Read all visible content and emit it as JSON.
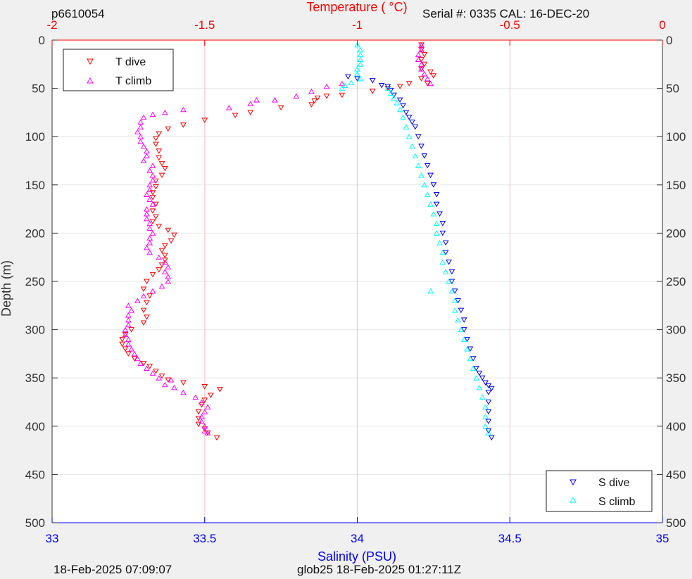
{
  "header": {
    "glider_id": "p6610054",
    "serial": "Serial #: 0335  CAL: 16-DEC-20"
  },
  "footer": {
    "timestamp": "18-Feb-2025 07:09:07",
    "dive_info": "glob25 18-Feb-2025 01:27:11Z"
  },
  "colors": {
    "temperature_axis": "#ff0000",
    "salinity_axis": "#0000ff",
    "t_dive": "#ff0000",
    "t_climb": "#ff00ff",
    "s_dive": "#0000ff",
    "s_climb": "#00ffff",
    "grid": "#f3c3c3"
  },
  "chart_data": {
    "type": "scatter",
    "title": "",
    "y_axis": {
      "label": "Depth (m)",
      "range": [
        0,
        500
      ],
      "ticks": [
        0,
        50,
        100,
        150,
        200,
        250,
        300,
        350,
        400,
        450,
        500
      ],
      "tick_labels": [
        "0",
        "50",
        "100",
        "150",
        "200",
        "250",
        "300",
        "350",
        "400",
        "450",
        "500"
      ],
      "reversed": true
    },
    "x_top": {
      "label": "Temperature (    °C)",
      "range": [
        -2,
        0
      ],
      "ticks": [
        -2,
        -1.5,
        -1,
        -0.5,
        0
      ],
      "tick_labels": [
        "-2",
        "-1.5",
        "-1",
        "-0.5",
        "0"
      ]
    },
    "x_bottom": {
      "label": "Salinity (PSU)",
      "range": [
        33,
        35
      ],
      "ticks": [
        33,
        33.5,
        34,
        34.5,
        35
      ],
      "tick_labels": [
        "33",
        "33.5",
        "34",
        "34.5",
        "35"
      ]
    },
    "grid": true,
    "legends": [
      {
        "placement": "top-left",
        "entries": [
          "T dive",
          "T climb"
        ]
      },
      {
        "placement": "bottom-right",
        "entries": [
          "S dive",
          "S climb"
        ]
      }
    ],
    "series": [
      {
        "name": "T dive",
        "axis": "temperature",
        "marker": "triangle-down",
        "points": [
          [
            -0.79,
            5
          ],
          [
            -0.79,
            10
          ],
          [
            -0.78,
            15
          ],
          [
            -0.79,
            20
          ],
          [
            -0.78,
            25
          ],
          [
            -0.79,
            30
          ],
          [
            -0.76,
            33
          ],
          [
            -0.75,
            37
          ],
          [
            -0.79,
            40
          ],
          [
            -0.77,
            45
          ],
          [
            -0.83,
            45
          ],
          [
            -0.86,
            48
          ],
          [
            -0.9,
            50
          ],
          [
            -0.95,
            53
          ],
          [
            -1.05,
            57
          ],
          [
            -1.1,
            58
          ],
          [
            -1.13,
            60
          ],
          [
            -1.14,
            63
          ],
          [
            -1.15,
            67
          ],
          [
            -1.25,
            70
          ],
          [
            -1.35,
            75
          ],
          [
            -1.4,
            78
          ],
          [
            -1.5,
            83
          ],
          [
            -1.57,
            88
          ],
          [
            -1.62,
            92
          ],
          [
            -1.65,
            97
          ],
          [
            -1.66,
            102
          ],
          [
            -1.66,
            108
          ],
          [
            -1.65,
            115
          ],
          [
            -1.65,
            122
          ],
          [
            -1.64,
            128
          ],
          [
            -1.63,
            133
          ],
          [
            -1.64,
            140
          ],
          [
            -1.66,
            146
          ],
          [
            -1.66,
            152
          ],
          [
            -1.67,
            158
          ],
          [
            -1.67,
            163
          ],
          [
            -1.66,
            170
          ],
          [
            -1.67,
            177
          ],
          [
            -1.66,
            183
          ],
          [
            -1.67,
            188
          ],
          [
            -1.65,
            193
          ],
          [
            -1.62,
            197
          ],
          [
            -1.6,
            202
          ],
          [
            -1.61,
            208
          ],
          [
            -1.63,
            213
          ],
          [
            -1.64,
            218
          ],
          [
            -1.63,
            223
          ],
          [
            -1.63,
            228
          ],
          [
            -1.64,
            233
          ],
          [
            -1.65,
            238
          ],
          [
            -1.67,
            243
          ],
          [
            -1.69,
            250
          ],
          [
            -1.7,
            258
          ],
          [
            -1.68,
            265
          ],
          [
            -1.69,
            272
          ],
          [
            -1.7,
            280
          ],
          [
            -1.69,
            287
          ],
          [
            -1.7,
            293
          ],
          [
            -1.74,
            300
          ],
          [
            -1.76,
            305
          ],
          [
            -1.77,
            310
          ],
          [
            -1.77,
            315
          ],
          [
            -1.76,
            320
          ],
          [
            -1.75,
            325
          ],
          [
            -1.73,
            330
          ],
          [
            -1.7,
            335
          ],
          [
            -1.68,
            338
          ],
          [
            -1.66,
            343
          ],
          [
            -1.64,
            348
          ],
          [
            -1.62,
            352
          ],
          [
            -1.57,
            355
          ],
          [
            -1.5,
            359
          ],
          [
            -1.45,
            362
          ],
          [
            -1.48,
            368
          ],
          [
            -1.5,
            373
          ],
          [
            -1.51,
            378
          ],
          [
            -1.52,
            385
          ],
          [
            -1.52,
            392
          ],
          [
            -1.52,
            398
          ],
          [
            -1.5,
            403
          ],
          [
            -1.49,
            407
          ],
          [
            -1.46,
            412
          ]
        ]
      },
      {
        "name": "T climb",
        "axis": "temperature",
        "marker": "triangle-up",
        "points": [
          [
            -0.79,
            5
          ],
          [
            -0.79,
            10
          ],
          [
            -0.8,
            15
          ],
          [
            -0.8,
            20
          ],
          [
            -0.79,
            25
          ],
          [
            -0.79,
            30
          ],
          [
            -0.78,
            35
          ],
          [
            -0.77,
            40
          ],
          [
            -0.76,
            45
          ],
          [
            -1.05,
            45
          ],
          [
            -1.1,
            48
          ],
          [
            -1.15,
            53
          ],
          [
            -1.2,
            58
          ],
          [
            -1.27,
            62
          ],
          [
            -1.33,
            62
          ],
          [
            -1.35,
            66
          ],
          [
            -1.42,
            70
          ],
          [
            -1.57,
            72
          ],
          [
            -1.63,
            75
          ],
          [
            -1.67,
            77
          ],
          [
            -1.7,
            80
          ],
          [
            -1.71,
            85
          ],
          [
            -1.71,
            90
          ],
          [
            -1.72,
            95
          ],
          [
            -1.71,
            100
          ],
          [
            -1.71,
            105
          ],
          [
            -1.7,
            110
          ],
          [
            -1.69,
            115
          ],
          [
            -1.69,
            120
          ],
          [
            -1.7,
            125
          ],
          [
            -1.67,
            130
          ],
          [
            -1.68,
            135
          ],
          [
            -1.67,
            140
          ],
          [
            -1.67,
            145
          ],
          [
            -1.68,
            150
          ],
          [
            -1.68,
            155
          ],
          [
            -1.69,
            160
          ],
          [
            -1.68,
            165
          ],
          [
            -1.67,
            170
          ],
          [
            -1.69,
            175
          ],
          [
            -1.69,
            180
          ],
          [
            -1.69,
            185
          ],
          [
            -1.68,
            190
          ],
          [
            -1.68,
            195
          ],
          [
            -1.67,
            200
          ],
          [
            -1.68,
            205
          ],
          [
            -1.68,
            210
          ],
          [
            -1.69,
            215
          ],
          [
            -1.68,
            220
          ],
          [
            -1.65,
            225
          ],
          [
            -1.63,
            230
          ],
          [
            -1.62,
            235
          ],
          [
            -1.63,
            240
          ],
          [
            -1.62,
            245
          ],
          [
            -1.62,
            250
          ],
          [
            -1.64,
            255
          ],
          [
            -1.67,
            260
          ],
          [
            -1.7,
            265
          ],
          [
            -1.72,
            270
          ],
          [
            -1.75,
            275
          ],
          [
            -1.74,
            280
          ],
          [
            -1.75,
            285
          ],
          [
            -1.75,
            290
          ],
          [
            -1.75,
            295
          ],
          [
            -1.76,
            300
          ],
          [
            -1.76,
            305
          ],
          [
            -1.75,
            310
          ],
          [
            -1.75,
            315
          ],
          [
            -1.74,
            320
          ],
          [
            -1.73,
            325
          ],
          [
            -1.72,
            330
          ],
          [
            -1.71,
            335
          ],
          [
            -1.69,
            340
          ],
          [
            -1.67,
            345
          ],
          [
            -1.65,
            350
          ],
          [
            -1.61,
            352
          ],
          [
            -1.63,
            357
          ],
          [
            -1.6,
            360
          ],
          [
            -1.57,
            365
          ],
          [
            -1.53,
            370
          ],
          [
            -1.51,
            375
          ],
          [
            -1.49,
            380
          ],
          [
            -1.5,
            385
          ],
          [
            -1.51,
            390
          ],
          [
            -1.51,
            395
          ],
          [
            -1.5,
            400
          ],
          [
            -1.5,
            405
          ],
          [
            -1.49,
            407
          ]
        ]
      },
      {
        "name": "S dive",
        "axis": "salinity",
        "marker": "triangle-down",
        "points": [
          [
            33.97,
            38
          ],
          [
            34.0,
            40
          ],
          [
            34.05,
            42
          ],
          [
            34.08,
            47
          ],
          [
            34.1,
            48
          ],
          [
            34.11,
            52
          ],
          [
            34.12,
            57
          ],
          [
            34.14,
            62
          ],
          [
            34.15,
            68
          ],
          [
            34.16,
            75
          ],
          [
            34.17,
            80
          ],
          [
            34.18,
            85
          ],
          [
            34.19,
            90
          ],
          [
            34.2,
            100
          ],
          [
            34.21,
            110
          ],
          [
            34.22,
            120
          ],
          [
            34.23,
            130
          ],
          [
            34.24,
            140
          ],
          [
            34.25,
            150
          ],
          [
            34.26,
            160
          ],
          [
            34.26,
            170
          ],
          [
            34.27,
            180
          ],
          [
            34.28,
            190
          ],
          [
            34.28,
            200
          ],
          [
            34.29,
            210
          ],
          [
            34.29,
            220
          ],
          [
            34.3,
            230
          ],
          [
            34.31,
            240
          ],
          [
            34.31,
            250
          ],
          [
            34.32,
            260
          ],
          [
            34.33,
            270
          ],
          [
            34.34,
            280
          ],
          [
            34.35,
            290
          ],
          [
            34.35,
            300
          ],
          [
            34.36,
            310
          ],
          [
            34.37,
            320
          ],
          [
            34.38,
            330
          ],
          [
            34.39,
            340
          ],
          [
            34.4,
            345
          ],
          [
            34.41,
            350
          ],
          [
            34.42,
            355
          ],
          [
            34.43,
            358
          ],
          [
            34.44,
            361
          ],
          [
            34.43,
            365
          ],
          [
            34.43,
            375
          ],
          [
            34.43,
            385
          ],
          [
            34.43,
            395
          ],
          [
            34.43,
            405
          ],
          [
            34.44,
            412
          ]
        ]
      },
      {
        "name": "S climb",
        "axis": "salinity",
        "marker": "triangle-up",
        "points": [
          [
            34.0,
            5
          ],
          [
            34.01,
            10
          ],
          [
            34.01,
            15
          ],
          [
            34.01,
            20
          ],
          [
            34.01,
            25
          ],
          [
            34.0,
            30
          ],
          [
            34.0,
            35
          ],
          [
            34.01,
            40
          ],
          [
            33.98,
            44
          ],
          [
            33.96,
            47
          ],
          [
            33.95,
            50
          ],
          [
            34.1,
            50
          ],
          [
            34.11,
            55
          ],
          [
            34.12,
            60
          ],
          [
            34.13,
            65
          ],
          [
            34.14,
            72
          ],
          [
            34.15,
            80
          ],
          [
            34.16,
            90
          ],
          [
            34.17,
            100
          ],
          [
            34.18,
            110
          ],
          [
            34.19,
            120
          ],
          [
            34.2,
            130
          ],
          [
            34.21,
            140
          ],
          [
            34.22,
            150
          ],
          [
            34.23,
            160
          ],
          [
            34.24,
            170
          ],
          [
            34.25,
            180
          ],
          [
            34.26,
            190
          ],
          [
            34.26,
            200
          ],
          [
            34.27,
            210
          ],
          [
            34.28,
            220
          ],
          [
            34.28,
            230
          ],
          [
            34.29,
            240
          ],
          [
            34.3,
            250
          ],
          [
            34.24,
            260
          ],
          [
            34.31,
            260
          ],
          [
            34.32,
            270
          ],
          [
            34.32,
            280
          ],
          [
            34.33,
            290
          ],
          [
            34.34,
            300
          ],
          [
            34.35,
            310
          ],
          [
            34.36,
            320
          ],
          [
            34.37,
            330
          ],
          [
            34.38,
            340
          ],
          [
            34.39,
            350
          ],
          [
            34.4,
            360
          ],
          [
            34.41,
            370
          ],
          [
            34.42,
            380
          ],
          [
            34.42,
            390
          ],
          [
            34.42,
            400
          ],
          [
            34.43,
            407
          ]
        ]
      }
    ]
  }
}
